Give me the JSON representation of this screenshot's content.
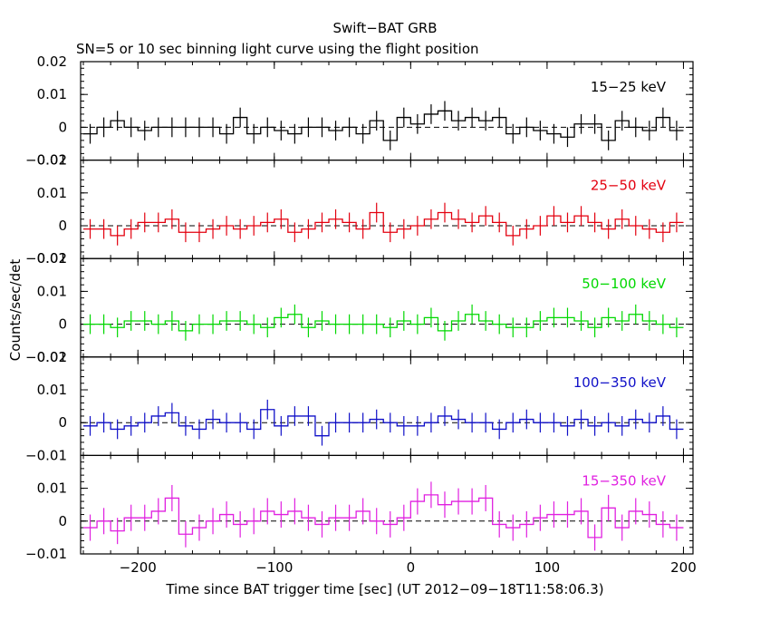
{
  "chart_data": {
    "type": "line",
    "title": "Swift−BAT GRB",
    "subtitle": "SN=5 or 10 sec binning light curve using the flight position",
    "xlabel": "Time since BAT trigger time [sec] (UT 2012−09−18T11:58:06.3)",
    "ylabel": "Counts/sec/det",
    "xlim": [
      -242,
      207
    ],
    "x_ticks": [
      -200,
      -100,
      0,
      100,
      200
    ],
    "x_tick_labels": [
      "−200",
      "−100",
      "0",
      "100",
      "200"
    ],
    "bin_width": 10,
    "x": [
      -235,
      -225,
      -215,
      -205,
      -195,
      -185,
      -175,
      -165,
      -155,
      -145,
      -135,
      -125,
      -115,
      -105,
      -95,
      -85,
      -75,
      -65,
      -55,
      -45,
      -35,
      -25,
      -15,
      -5,
      5,
      15,
      25,
      35,
      45,
      55,
      65,
      75,
      85,
      95,
      105,
      115,
      125,
      135,
      145,
      155,
      165,
      175,
      185,
      195
    ],
    "panels": [
      {
        "name": "15−25 keV",
        "color": "#000000",
        "ylim": [
          -0.01,
          0.02
        ],
        "y_ticks": [
          -0.01,
          0,
          0.01,
          0.02
        ],
        "y_tick_labels": [
          "−0.01",
          "0",
          "0.01",
          "0.02"
        ],
        "values": [
          -0.002,
          0.0,
          0.002,
          0.0,
          -0.001,
          0.0,
          0.0,
          0.0,
          0.0,
          0.0,
          -0.002,
          0.003,
          -0.002,
          0.0,
          -0.001,
          -0.002,
          0.0,
          0.0,
          -0.001,
          0.0,
          -0.002,
          0.002,
          -0.004,
          0.003,
          0.001,
          0.004,
          0.005,
          0.002,
          0.003,
          0.002,
          0.003,
          -0.002,
          0.0,
          -0.001,
          -0.002,
          -0.003,
          0.001,
          0.001,
          -0.004,
          0.002,
          0.0,
          -0.001,
          0.003,
          -0.001
        ],
        "errors": [
          0.003,
          0.003,
          0.003,
          0.003,
          0.003,
          0.003,
          0.003,
          0.003,
          0.003,
          0.003,
          0.003,
          0.003,
          0.003,
          0.003,
          0.003,
          0.003,
          0.003,
          0.003,
          0.003,
          0.003,
          0.003,
          0.003,
          0.003,
          0.003,
          0.003,
          0.003,
          0.003,
          0.003,
          0.003,
          0.003,
          0.003,
          0.003,
          0.003,
          0.003,
          0.003,
          0.003,
          0.003,
          0.003,
          0.003,
          0.003,
          0.003,
          0.003,
          0.003,
          0.003
        ]
      },
      {
        "name": "25−50 keV",
        "color": "#e3000f",
        "ylim": [
          -0.01,
          0.02
        ],
        "y_ticks": [
          -0.01,
          0,
          0.01,
          0.02
        ],
        "y_tick_labels": [
          "−0.01",
          "0",
          "0.01",
          "0.02"
        ],
        "values": [
          -0.001,
          -0.001,
          -0.003,
          -0.001,
          0.001,
          0.001,
          0.002,
          -0.002,
          -0.002,
          -0.001,
          0.0,
          -0.001,
          0.0,
          0.001,
          0.002,
          -0.002,
          -0.001,
          0.001,
          0.002,
          0.001,
          -0.001,
          0.004,
          -0.002,
          -0.001,
          0.0,
          0.002,
          0.004,
          0.002,
          0.001,
          0.003,
          0.001,
          -0.003,
          -0.001,
          0.0,
          0.003,
          0.001,
          0.003,
          0.001,
          -0.001,
          0.002,
          0.0,
          -0.001,
          -0.002,
          0.001
        ],
        "errors": [
          0.003,
          0.003,
          0.003,
          0.003,
          0.003,
          0.003,
          0.003,
          0.003,
          0.003,
          0.003,
          0.003,
          0.003,
          0.003,
          0.003,
          0.003,
          0.003,
          0.003,
          0.003,
          0.003,
          0.003,
          0.003,
          0.003,
          0.003,
          0.003,
          0.003,
          0.003,
          0.003,
          0.003,
          0.003,
          0.003,
          0.003,
          0.003,
          0.003,
          0.003,
          0.003,
          0.003,
          0.003,
          0.003,
          0.003,
          0.003,
          0.003,
          0.003,
          0.003,
          0.003
        ]
      },
      {
        "name": "50−100 keV",
        "color": "#00d800",
        "ylim": [
          -0.01,
          0.02
        ],
        "y_ticks": [
          -0.01,
          0,
          0.01,
          0.02
        ],
        "y_tick_labels": [
          "−0.01",
          "0",
          "0.01",
          "0.02"
        ],
        "values": [
          0.0,
          0.0,
          -0.001,
          0.001,
          0.001,
          0.0,
          0.001,
          -0.002,
          0.0,
          0.0,
          0.001,
          0.001,
          0.0,
          -0.001,
          0.002,
          0.003,
          -0.001,
          0.001,
          0.0,
          0.0,
          0.0,
          0.0,
          -0.001,
          0.001,
          0.0,
          0.002,
          -0.002,
          0.001,
          0.003,
          0.001,
          0.0,
          -0.001,
          -0.001,
          0.001,
          0.002,
          0.002,
          0.001,
          -0.001,
          0.002,
          0.001,
          0.003,
          0.001,
          0.0,
          -0.001
        ],
        "errors": [
          0.003,
          0.003,
          0.003,
          0.003,
          0.003,
          0.003,
          0.003,
          0.003,
          0.003,
          0.003,
          0.003,
          0.003,
          0.003,
          0.003,
          0.003,
          0.003,
          0.003,
          0.003,
          0.003,
          0.003,
          0.003,
          0.003,
          0.003,
          0.003,
          0.003,
          0.003,
          0.003,
          0.003,
          0.003,
          0.003,
          0.003,
          0.003,
          0.003,
          0.003,
          0.003,
          0.003,
          0.003,
          0.003,
          0.003,
          0.003,
          0.003,
          0.003,
          0.003,
          0.003
        ]
      },
      {
        "name": "100−350 keV",
        "color": "#1010c8",
        "ylim": [
          -0.01,
          0.02
        ],
        "y_ticks": [
          -0.01,
          0,
          0.01,
          0.02
        ],
        "y_tick_labels": [
          "−0.01",
          "0",
          "0.01",
          "0.02"
        ],
        "values": [
          -0.001,
          0.0,
          -0.002,
          -0.001,
          0.0,
          0.002,
          0.003,
          -0.001,
          -0.002,
          0.001,
          0.0,
          0.0,
          -0.002,
          0.004,
          -0.001,
          0.002,
          0.002,
          -0.004,
          0.0,
          0.0,
          0.0,
          0.001,
          0.0,
          -0.001,
          -0.001,
          0.0,
          0.002,
          0.001,
          0.0,
          0.0,
          -0.002,
          0.0,
          0.001,
          0.0,
          0.0,
          -0.001,
          0.001,
          -0.001,
          0.0,
          -0.001,
          0.001,
          0.0,
          0.002,
          -0.002
        ],
        "errors": [
          0.003,
          0.003,
          0.003,
          0.003,
          0.003,
          0.003,
          0.003,
          0.003,
          0.003,
          0.003,
          0.003,
          0.003,
          0.003,
          0.003,
          0.003,
          0.003,
          0.003,
          0.003,
          0.003,
          0.003,
          0.003,
          0.003,
          0.003,
          0.003,
          0.003,
          0.003,
          0.003,
          0.003,
          0.003,
          0.003,
          0.003,
          0.003,
          0.003,
          0.003,
          0.003,
          0.003,
          0.003,
          0.003,
          0.003,
          0.003,
          0.003,
          0.003,
          0.003,
          0.003
        ]
      },
      {
        "name": "15−350 keV",
        "color": "#e020e0",
        "ylim": [
          -0.01,
          0.02
        ],
        "y_ticks": [
          -0.01,
          0,
          0.01
        ],
        "y_tick_labels": [
          "−0.01",
          "0",
          "0.01"
        ],
        "values": [
          -0.002,
          0.0,
          -0.003,
          0.001,
          0.001,
          0.003,
          0.007,
          -0.004,
          -0.002,
          0.0,
          0.002,
          -0.001,
          0.0,
          0.003,
          0.002,
          0.003,
          0.001,
          -0.001,
          0.001,
          0.001,
          0.003,
          0.0,
          -0.001,
          0.001,
          0.006,
          0.008,
          0.005,
          0.006,
          0.006,
          0.007,
          -0.001,
          -0.002,
          -0.001,
          0.001,
          0.002,
          0.002,
          0.003,
          -0.005,
          0.004,
          -0.002,
          0.003,
          0.002,
          -0.001,
          -0.002
        ],
        "errors": [
          0.004,
          0.004,
          0.004,
          0.004,
          0.004,
          0.004,
          0.004,
          0.004,
          0.004,
          0.004,
          0.004,
          0.004,
          0.004,
          0.004,
          0.004,
          0.004,
          0.004,
          0.004,
          0.004,
          0.004,
          0.004,
          0.004,
          0.004,
          0.004,
          0.004,
          0.004,
          0.004,
          0.004,
          0.004,
          0.004,
          0.004,
          0.004,
          0.004,
          0.004,
          0.004,
          0.004,
          0.004,
          0.004,
          0.004,
          0.004,
          0.004,
          0.004,
          0.004,
          0.004
        ]
      }
    ]
  }
}
